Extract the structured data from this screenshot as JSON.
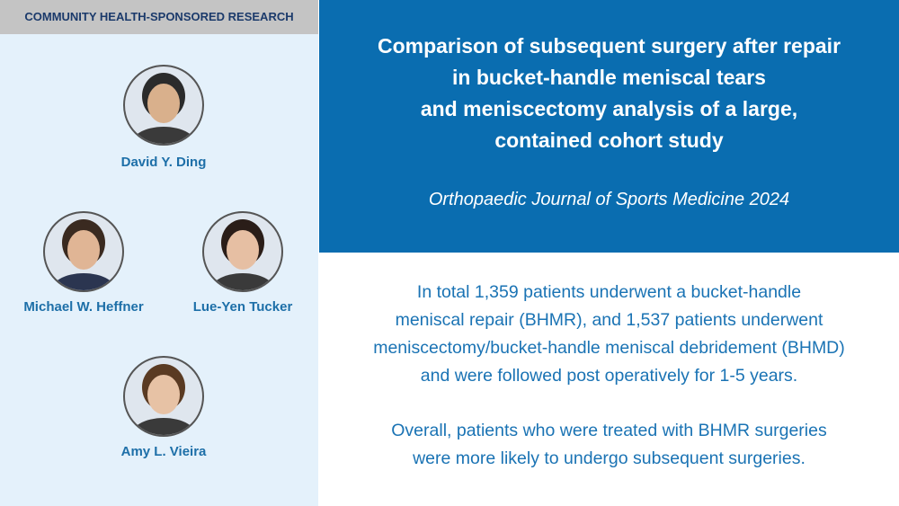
{
  "header": {
    "label": "COMMUNITY HEALTH-SPONSORED RESEARCH"
  },
  "authors": [
    {
      "name": "David Y. Ding"
    },
    {
      "name": "Michael W. Heffner"
    },
    {
      "name": "Lue-Yen Tucker"
    },
    {
      "name": "Amy L. Vieira"
    }
  ],
  "article": {
    "title_lines": [
      "Comparison of subsequent surgery after repair",
      "in bucket-handle meniscal tears",
      "and meniscectomy analysis of a large,",
      "contained cohort study"
    ],
    "journal": "Orthopaedic Journal of Sports Medicine 2024",
    "summary": [
      [
        "In total 1,359 patients underwent a bucket-handle",
        "meniscal repair (BHMR), and 1,537 patients underwent",
        "meniscectomy/bucket-handle meniscal debridement (BHMD)",
        "and were followed post operatively for 1-5 years."
      ],
      [
        "Overall, patients who were treated with BHMR surgeries",
        "were more likely to undergo subsequent surgeries."
      ]
    ]
  }
}
